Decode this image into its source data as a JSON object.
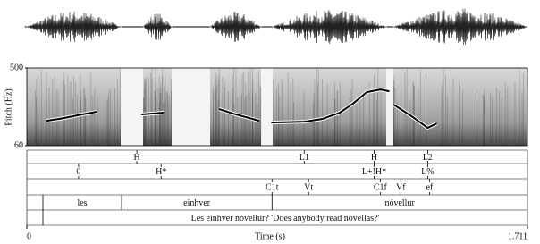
{
  "chart_data": {
    "type": "line",
    "ylabel": "Pitch (Hz)",
    "xlabel": "Time (s)",
    "xlim": [
      0,
      1.711
    ],
    "xticks": [
      0,
      1.711
    ],
    "ylim": [
      60,
      500
    ],
    "yticks": [
      60,
      500
    ],
    "color": "#000000",
    "x": [
      0.067,
      0.122,
      0.183,
      0.239,
      null,
      0.391,
      0.468,
      null,
      0.657,
      0.719,
      0.795,
      null,
      0.835,
      0.948,
      1.009,
      1.07,
      1.116,
      1.162,
      1.208,
      1.239,
      null,
      1.254,
      1.315,
      1.37,
      1.401
    ],
    "values": [
      201,
      215,
      235,
      252,
      null,
      237,
      247,
      null,
      267,
      235,
      201,
      null,
      191,
      196,
      211,
      247,
      300,
      363,
      378,
      368,
      null,
      292,
      227,
      161,
      186
    ],
    "point_tiers": [
      {
        "points": [
          {
            "time": 0.376,
            "label": "H"
          },
          {
            "time": 0.948,
            "label": "L1"
          },
          {
            "time": 1.187,
            "label": "H"
          },
          {
            "time": 1.37,
            "label": "L2"
          }
        ]
      },
      {
        "points": [
          {
            "time": 0.177,
            "label": "0"
          },
          {
            "time": 0.459,
            "label": "H*"
          },
          {
            "time": 1.187,
            "label": "L+!H*"
          },
          {
            "time": 1.37,
            "label": "L%"
          }
        ]
      },
      {
        "points": [
          {
            "time": 0.838,
            "label": "C1t"
          },
          {
            "time": 0.963,
            "label": "Vt"
          },
          {
            "time": 1.208,
            "label": "C1f"
          },
          {
            "time": 1.278,
            "label": "Vf"
          },
          {
            "time": 1.376,
            "label": "ef"
          }
        ]
      }
    ],
    "interval_tiers": [
      {
        "boundaries": [
          0.055,
          0.324,
          0.838
        ],
        "labels": [
          null,
          "les",
          "einhver",
          "nóvellur"
        ]
      },
      {
        "boundaries": [
          0.055
        ],
        "labels": [
          null,
          "Les einhver nóvellur? 'Does anybody read novellas?'"
        ]
      }
    ]
  }
}
